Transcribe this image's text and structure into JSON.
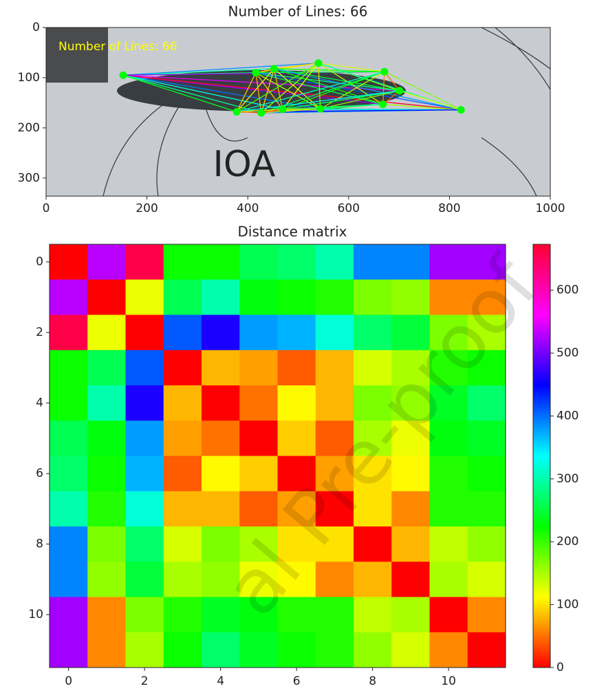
{
  "chart_data": [
    {
      "type": "scatter",
      "title": "Number of Lines: 66",
      "annotation": "Number of Lines: 66",
      "annotation_color": "#ffff00",
      "photo_text": "IOA",
      "x": [
        153,
        416,
        452,
        540,
        671,
        701,
        668,
        823,
        544,
        469,
        427,
        378
      ],
      "y": [
        95,
        90,
        82,
        71,
        88,
        126,
        153,
        164,
        162,
        163,
        170,
        168
      ],
      "point_color": "#00ff00",
      "xlim": [
        0,
        1000
      ],
      "ylim": [
        336,
        0
      ],
      "xticks": [
        0,
        200,
        400,
        600,
        800,
        1000
      ],
      "yticks": [
        0,
        100,
        200,
        300
      ]
    },
    {
      "type": "heatmap",
      "title": "Distance matrix",
      "values": [
        [
          0,
          530,
          660,
          220,
          220,
          260,
          270,
          300,
          390,
          390,
          520,
          520
        ],
        [
          530,
          0,
          120,
          260,
          300,
          230,
          220,
          210,
          170,
          160,
          60,
          60
        ],
        [
          660,
          120,
          0,
          410,
          460,
          380,
          370,
          320,
          270,
          250,
          170,
          150
        ],
        [
          220,
          260,
          410,
          0,
          80,
          70,
          40,
          80,
          130,
          150,
          210,
          220
        ],
        [
          220,
          300,
          460,
          80,
          0,
          50,
          110,
          80,
          170,
          160,
          240,
          270
        ],
        [
          260,
          230,
          380,
          70,
          50,
          0,
          90,
          40,
          150,
          120,
          230,
          240
        ],
        [
          270,
          220,
          370,
          40,
          110,
          90,
          0,
          70,
          100,
          110,
          210,
          220
        ],
        [
          300,
          210,
          320,
          80,
          80,
          40,
          70,
          0,
          100,
          60,
          210,
          210
        ],
        [
          390,
          170,
          270,
          130,
          170,
          150,
          100,
          100,
          0,
          80,
          140,
          160
        ],
        [
          390,
          160,
          250,
          150,
          160,
          120,
          110,
          60,
          80,
          0,
          150,
          130
        ],
        [
          520,
          60,
          170,
          210,
          240,
          230,
          210,
          210,
          140,
          150,
          0,
          60
        ],
        [
          520,
          60,
          150,
          220,
          270,
          240,
          220,
          210,
          160,
          130,
          60,
          0
        ]
      ],
      "xlim": [
        -0.5,
        11.5
      ],
      "ylim": [
        11.5,
        -0.5
      ],
      "xticks": [
        0,
        2,
        4,
        6,
        8,
        10
      ],
      "yticks": [
        0,
        2,
        4,
        6,
        8,
        10
      ],
      "clim": [
        0,
        673
      ],
      "cticks": [
        0,
        100,
        200,
        300,
        400,
        500,
        600
      ],
      "colormap": [
        "#ff0000",
        "#ffff00",
        "#00ff00",
        "#00ffff",
        "#0000ff",
        "#ff00ff",
        "#ff0030"
      ]
    }
  ],
  "watermark": "al Pre-proof"
}
